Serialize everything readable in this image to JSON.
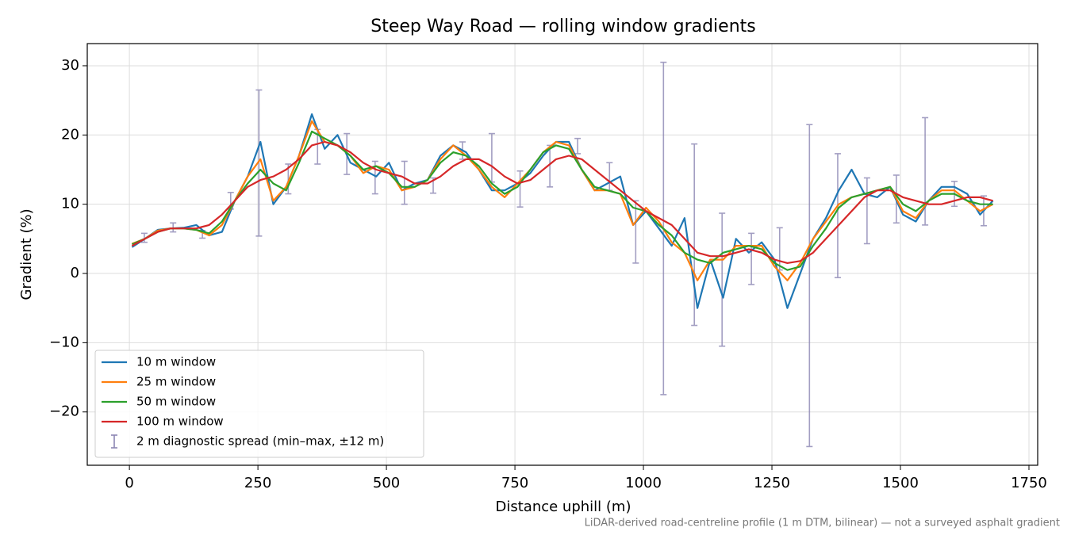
{
  "chart_data": {
    "type": "line",
    "title": "Steep Way Road — rolling window gradients",
    "x_label": "Distance uphill (m)",
    "y_label": "Gradient (%)",
    "caption": "LiDAR-derived road-centreline profile (1 m DTM, bilinear) — not a surveyed asphalt gradient",
    "xlim": [
      -82,
      1767
    ],
    "ylim": [
      -27.7,
      33.2
    ],
    "xticks": [
      0,
      250,
      500,
      750,
      1000,
      1250,
      1500,
      1750
    ],
    "yticks": [
      {
        "value": -20,
        "label": "−20"
      },
      {
        "value": -10,
        "label": "−10"
      },
      0,
      10,
      20,
      30
    ],
    "grid": true,
    "legend": "lower left",
    "x": [
      5,
      30,
      55,
      80,
      105,
      130,
      155,
      180,
      205,
      230,
      255,
      280,
      305,
      330,
      355,
      380,
      405,
      430,
      455,
      480,
      505,
      530,
      555,
      580,
      605,
      630,
      655,
      680,
      705,
      730,
      755,
      780,
      805,
      830,
      855,
      880,
      905,
      930,
      955,
      980,
      1005,
      1030,
      1055,
      1080,
      1105,
      1130,
      1155,
      1180,
      1205,
      1230,
      1255,
      1280,
      1305,
      1330,
      1355,
      1380,
      1405,
      1430,
      1455,
      1480,
      1505,
      1530,
      1555,
      1580,
      1605,
      1630,
      1655,
      1680
    ],
    "series": [
      {
        "name": "10 m window",
        "color": "#1f77b4",
        "values": [
          3.8,
          5,
          6.3,
          6.5,
          6.6,
          7,
          5.5,
          6,
          10.5,
          14,
          19,
          10,
          12.5,
          17,
          23,
          18,
          20,
          16,
          15,
          14,
          16,
          12,
          13,
          13.5,
          17,
          18.5,
          17.5,
          15,
          12,
          12,
          13,
          14.5,
          17,
          19,
          19,
          15,
          12,
          13,
          14,
          7,
          9,
          6.5,
          4,
          8,
          -5,
          2,
          -3.5,
          5,
          3,
          4.5,
          2,
          -5,
          0,
          5,
          8,
          12,
          15,
          11.5,
          11,
          12.5,
          8.5,
          7.5,
          10.5,
          12.5,
          12.5,
          11.5,
          8.5,
          10.5
        ]
      },
      {
        "name": "25 m window",
        "color": "#ff7f0e",
        "values": [
          4.3,
          5,
          6.2,
          6.5,
          6.5,
          6.3,
          5.5,
          7,
          10.5,
          14,
          16.5,
          10.5,
          12.5,
          17,
          22,
          19,
          18.5,
          17,
          14.5,
          15.5,
          15,
          12,
          12.5,
          13.5,
          16.5,
          18.5,
          17,
          15,
          12.5,
          11,
          13,
          15,
          17.5,
          19,
          18.5,
          15,
          12,
          12,
          11.5,
          7,
          9.5,
          7.5,
          4.5,
          3,
          -1,
          2,
          2,
          4,
          4,
          4,
          1,
          -1,
          1.5,
          5,
          7.5,
          10,
          11,
          11.5,
          12,
          12.5,
          9,
          8,
          10.5,
          12,
          12,
          10.5,
          9,
          10
        ]
      },
      {
        "name": "50 m window",
        "color": "#2ca02c",
        "values": [
          4.2,
          5,
          6,
          6.5,
          6.5,
          6.3,
          5.8,
          7.5,
          10.5,
          13,
          15,
          13,
          12,
          16,
          20.5,
          19.5,
          18.5,
          17,
          15,
          15.5,
          14.5,
          12.5,
          12.5,
          13.5,
          16,
          17.5,
          17,
          15.5,
          13,
          11.5,
          12.5,
          15,
          17.5,
          18.5,
          18,
          15,
          12.5,
          12,
          11.5,
          9.5,
          9,
          7,
          5.5,
          3,
          2,
          1.5,
          3,
          3.5,
          4,
          3.5,
          1.5,
          0.5,
          1,
          4,
          6.5,
          9.5,
          11,
          11.5,
          12,
          12.5,
          10,
          9,
          10.5,
          11.5,
          11.5,
          10.5,
          10,
          10
        ]
      },
      {
        "name": "100 m window",
        "color": "#d62728",
        "values": [
          4,
          5,
          6,
          6.5,
          6.5,
          6.5,
          7,
          8.5,
          10.5,
          12.5,
          13.5,
          14,
          15,
          16.5,
          18.5,
          19,
          18.5,
          17.5,
          16,
          15,
          14.5,
          14,
          13,
          13,
          14,
          15.5,
          16.5,
          16.5,
          15.5,
          14,
          13,
          13.5,
          15,
          16.5,
          17,
          16.5,
          15,
          13.5,
          12,
          10.5,
          9,
          8,
          7,
          5,
          3,
          2.5,
          2.5,
          3,
          3.5,
          3,
          2,
          1.5,
          1.8,
          3,
          5,
          7,
          9,
          11,
          12,
          12,
          11,
          10.5,
          10,
          10,
          10.5,
          11,
          11,
          10.5
        ]
      }
    ],
    "errorbars": {
      "name": "2 m diagnostic spread (min–max, ±12 m)",
      "color": "#8c86b3",
      "x": [
        29,
        85,
        142,
        197,
        252,
        309,
        366,
        423,
        478,
        535,
        591,
        648,
        705,
        760,
        818,
        872,
        934,
        985,
        1039,
        1099,
        1153,
        1210,
        1265,
        1323,
        1378,
        1435,
        1492,
        1548,
        1605,
        1662
      ],
      "low": [
        4.5,
        6,
        5.1,
        9.3,
        5.4,
        11.5,
        15.8,
        14.3,
        11.5,
        10,
        11.6,
        16.5,
        13.2,
        9.6,
        12.5,
        17.3,
        12,
        1.5,
        -17.5,
        -7.5,
        -10.5,
        -1.6,
        0.5,
        -25,
        -0.6,
        4.3,
        7.3,
        7,
        9.7,
        6.9
      ],
      "high": [
        5.8,
        7.3,
        6.2,
        11.7,
        26.5,
        15.8,
        20.8,
        20.2,
        16.2,
        16.2,
        13.8,
        19,
        20.2,
        14.8,
        18.5,
        19.5,
        16,
        10.5,
        30.5,
        18.7,
        8.7,
        5.8,
        6.6,
        21.5,
        17.3,
        13.8,
        14.2,
        22.5,
        13.3,
        11.2
      ]
    }
  }
}
